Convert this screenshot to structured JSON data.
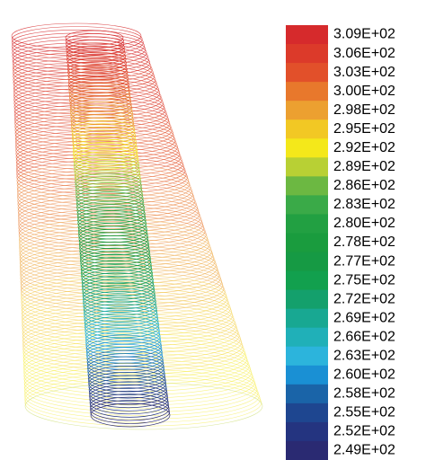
{
  "legend": [
    {
      "label": "3.09E+02",
      "color": "#d62a2c"
    },
    {
      "label": "3.06E+02",
      "color": "#dc3a2a"
    },
    {
      "label": "3.03E+02",
      "color": "#e2502a"
    },
    {
      "label": "3.00E+02",
      "color": "#e8782c"
    },
    {
      "label": "2.98E+02",
      "color": "#eca030"
    },
    {
      "label": "2.95E+02",
      "color": "#f2c824"
    },
    {
      "label": "2.92E+02",
      "color": "#f4e81a"
    },
    {
      "label": "2.89E+02",
      "color": "#b8d034"
    },
    {
      "label": "2.86E+02",
      "color": "#6cb842"
    },
    {
      "label": "2.83E+02",
      "color": "#3aaa48"
    },
    {
      "label": "2.80E+02",
      "color": "#22a042"
    },
    {
      "label": "2.78E+02",
      "color": "#1a9c3e"
    },
    {
      "label": "2.77E+02",
      "color": "#169a44"
    },
    {
      "label": "2.75E+02",
      "color": "#12a04e"
    },
    {
      "label": "2.72E+02",
      "color": "#14a06c"
    },
    {
      "label": "2.69E+02",
      "color": "#18a892"
    },
    {
      "label": "2.66E+02",
      "color": "#20b0b8"
    },
    {
      "label": "2.63E+02",
      "color": "#2cb4dc"
    },
    {
      "label": "2.60E+02",
      "color": "#1a90d4"
    },
    {
      "label": "2.58E+02",
      "color": "#1a64a8"
    },
    {
      "label": "2.55E+02",
      "color": "#1e4690"
    },
    {
      "label": "2.52E+02",
      "color": "#243480"
    },
    {
      "label": "2.49E+02",
      "color": "#2a2a72"
    }
  ]
}
